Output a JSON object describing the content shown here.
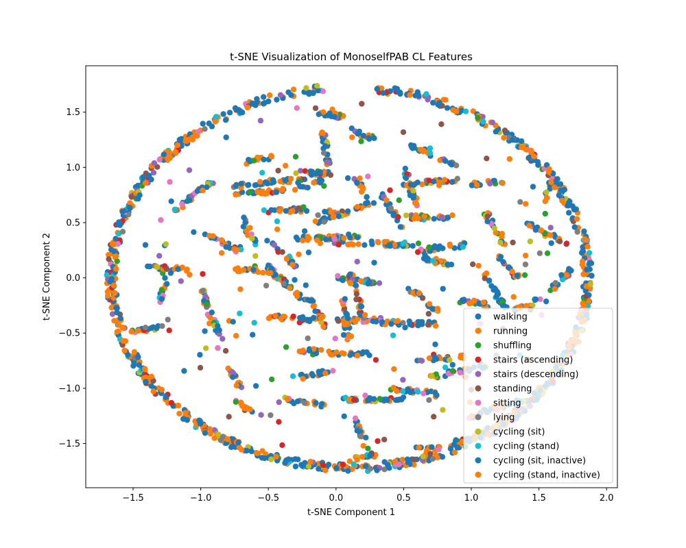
{
  "chart_data": {
    "type": "scatter",
    "title": "t-SNE Visualization of MonoselfPAB CL Features",
    "xlabel": "t-SNE Component 1",
    "ylabel": "t-SNE Component 2",
    "xlim": [
      -1.85,
      2.08
    ],
    "ylim": [
      -1.9,
      1.92
    ],
    "xticks": [
      -1.5,
      -1.0,
      -0.5,
      0.0,
      0.5,
      1.0,
      1.5,
      2.0
    ],
    "xtick_labels": [
      "−1.5",
      "−1.0",
      "−0.5",
      "0.0",
      "0.5",
      "1.0",
      "1.5",
      "2.0"
    ],
    "yticks": [
      -1.5,
      -1.0,
      -0.5,
      0.0,
      0.5,
      1.0,
      1.5
    ],
    "ytick_labels": [
      "−1.5",
      "−1.0",
      "−0.5",
      "0.0",
      "0.5",
      "1.0",
      "1.5"
    ],
    "grid": false,
    "legend_position": "lower right",
    "series": [
      {
        "name": "walking",
        "color": "#1f77b4"
      },
      {
        "name": "running",
        "color": "#ff7f0e"
      },
      {
        "name": "shuffling",
        "color": "#2ca02c"
      },
      {
        "name": "stairs (ascending)",
        "color": "#d62728"
      },
      {
        "name": "stairs (descending)",
        "color": "#9467bd"
      },
      {
        "name": "standing",
        "color": "#8c564b"
      },
      {
        "name": "sitting",
        "color": "#e377c2"
      },
      {
        "name": "lying",
        "color": "#7f7f7f"
      },
      {
        "name": "cycling (sit)",
        "color": "#bcbd22"
      },
      {
        "name": "cycling (stand)",
        "color": "#17becf"
      },
      {
        "name": "cycling (sit, inactive)",
        "color": "#1f77b4"
      },
      {
        "name": "cycling (stand, inactive)",
        "color": "#ff7f0e"
      }
    ],
    "structures": {
      "ring": {
        "cx": 0.1,
        "cy": 0.0,
        "rx": 1.76,
        "ry": 1.72
      },
      "ring_gaps": [
        [
          84,
          96
        ]
      ],
      "strokes": [
        [
          [
            -0.8,
            0.82
          ],
          [
            -0.45,
            0.88
          ]
        ],
        [
          [
            -0.45,
            0.88
          ],
          [
            -0.1,
            0.88
          ]
        ],
        [
          [
            -0.75,
            0.75
          ],
          [
            -0.2,
            0.82
          ]
        ],
        [
          [
            -0.9,
            0.88
          ],
          [
            -1.2,
            0.6
          ]
        ],
        [
          [
            -1.0,
            0.4
          ],
          [
            -0.7,
            0.25
          ]
        ],
        [
          [
            -0.5,
            0.6
          ],
          [
            -0.2,
            0.62
          ]
        ],
        [
          [
            -0.3,
            0.35
          ],
          [
            0.2,
            0.38
          ]
        ],
        [
          [
            0.0,
            0.32
          ],
          [
            0.6,
            0.3
          ]
        ],
        [
          [
            0.6,
            0.25
          ],
          [
            0.95,
            0.3
          ]
        ],
        [
          [
            -0.5,
            0.35
          ],
          [
            -0.3,
            0.1
          ]
        ],
        [
          [
            -0.5,
            0.1
          ],
          [
            -0.2,
            -0.25
          ]
        ],
        [
          [
            -0.75,
            0.08
          ],
          [
            -0.45,
            0.05
          ]
        ],
        [
          [
            -1.4,
            0.1
          ],
          [
            -1.1,
            0.08
          ]
        ],
        [
          [
            -1.0,
            -0.1
          ],
          [
            -0.85,
            -0.55
          ]
        ],
        [
          [
            -0.5,
            -0.35
          ],
          [
            -0.15,
            -0.38
          ]
        ],
        [
          [
            -0.2,
            -0.2
          ],
          [
            -0.05,
            -0.5
          ]
        ],
        [
          [
            0.0,
            0.0
          ],
          [
            0.35,
            -0.05
          ]
        ],
        [
          [
            0.1,
            0.05
          ],
          [
            0.2,
            -0.35
          ]
        ],
        [
          [
            0.0,
            -0.38
          ],
          [
            0.35,
            -0.38
          ]
        ],
        [
          [
            0.3,
            -0.4
          ],
          [
            0.75,
            -0.42
          ]
        ],
        [
          [
            0.05,
            -0.7
          ],
          [
            0.25,
            -0.68
          ]
        ],
        [
          [
            -0.3,
            -0.65
          ],
          [
            0.0,
            -0.68
          ]
        ],
        [
          [
            0.05,
            -0.2
          ],
          [
            0.1,
            -0.55
          ]
        ],
        [
          [
            0.5,
            0.85
          ],
          [
            0.9,
            0.88
          ]
        ],
        [
          [
            0.5,
            0.55
          ],
          [
            0.85,
            0.55
          ]
        ],
        [
          [
            1.0,
            0.85
          ],
          [
            1.25,
            0.88
          ]
        ],
        [
          [
            1.1,
            0.6
          ],
          [
            1.25,
            0.3
          ]
        ],
        [
          [
            1.2,
            0.2
          ],
          [
            1.35,
            0.0
          ]
        ],
        [
          [
            1.4,
            0.5
          ],
          [
            1.7,
            0.3
          ]
        ],
        [
          [
            0.55,
            1.2
          ],
          [
            0.9,
            1.0
          ]
        ],
        [
          [
            0.5,
            1.0
          ],
          [
            0.6,
            0.65
          ]
        ],
        [
          [
            0.35,
            0.75
          ],
          [
            0.5,
            0.45
          ]
        ],
        [
          [
            -0.1,
            1.35
          ],
          [
            -0.05,
            1.0
          ]
        ],
        [
          [
            -0.15,
            1.5
          ],
          [
            0.1,
            1.45
          ]
        ],
        [
          [
            0.1,
            1.35
          ],
          [
            0.3,
            1.25
          ]
        ],
        [
          [
            -0.15,
            0.5
          ],
          [
            0.3,
            0.7
          ]
        ],
        [
          [
            -0.3,
            0.95
          ],
          [
            -0.05,
            0.95
          ]
        ],
        [
          [
            0.15,
            0.9
          ],
          [
            0.25,
            0.7
          ]
        ],
        [
          [
            -1.3,
            -0.2
          ],
          [
            -1.25,
            0.0
          ]
        ],
        [
          [
            -1.55,
            -0.5
          ],
          [
            -1.3,
            -0.45
          ]
        ],
        [
          [
            -0.8,
            -0.8
          ],
          [
            -0.7,
            -1.0
          ]
        ],
        [
          [
            -0.75,
            -1.1
          ],
          [
            -0.6,
            -1.25
          ]
        ],
        [
          [
            -0.4,
            -1.1
          ],
          [
            -0.1,
            -1.15
          ]
        ],
        [
          [
            0.0,
            -1.1
          ],
          [
            0.5,
            -1.1
          ]
        ],
        [
          [
            0.1,
            -1.65
          ],
          [
            0.3,
            -1.6
          ]
        ],
        [
          [
            0.15,
            -1.3
          ],
          [
            0.25,
            -1.6
          ]
        ],
        [
          [
            0.4,
            -1.0
          ],
          [
            0.75,
            -1.05
          ]
        ],
        [
          [
            0.6,
            -0.75
          ],
          [
            0.95,
            -0.72
          ]
        ],
        [
          [
            0.7,
            -0.9
          ],
          [
            1.1,
            -0.8
          ]
        ],
        [
          [
            0.6,
            -1.55
          ],
          [
            0.8,
            -1.55
          ]
        ],
        [
          [
            0.85,
            -1.5
          ],
          [
            1.2,
            -1.4
          ]
        ],
        [
          [
            1.0,
            -1.25
          ],
          [
            1.4,
            -1.1
          ]
        ],
        [
          [
            0.6,
            0.2
          ],
          [
            0.9,
            0.1
          ]
        ],
        [
          [
            0.55,
            -0.1
          ],
          [
            0.75,
            -0.3
          ]
        ],
        [
          [
            0.9,
            -0.2
          ],
          [
            1.15,
            -0.25
          ]
        ],
        [
          [
            1.1,
            0.05
          ],
          [
            1.25,
            -0.3
          ]
        ],
        [
          [
            1.3,
            -0.3
          ],
          [
            1.5,
            -0.2
          ]
        ],
        [
          [
            1.6,
            -0.1
          ],
          [
            1.75,
            0.1
          ]
        ],
        [
          [
            1.55,
            0.7
          ],
          [
            1.6,
            0.9
          ]
        ],
        [
          [
            -0.3,
            -0.9
          ],
          [
            -0.05,
            -0.85
          ]
        ],
        [
          [
            -0.65,
            1.05
          ],
          [
            -0.45,
            1.1
          ]
        ],
        [
          [
            -0.7,
            0.55
          ],
          [
            -0.6,
            0.3
          ]
        ],
        [
          [
            -0.1,
            0.62
          ],
          [
            0.05,
            0.55
          ]
        ]
      ]
    }
  }
}
